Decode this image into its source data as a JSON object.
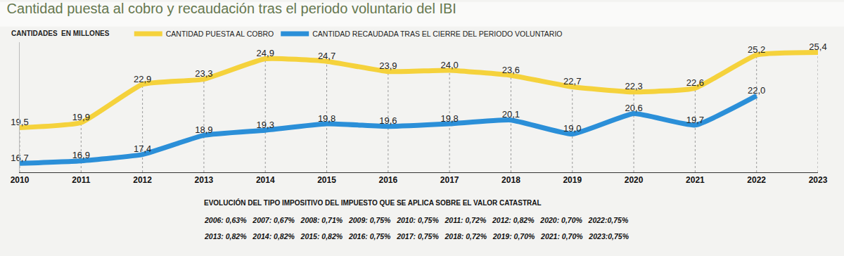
{
  "chart_data": {
    "type": "line",
    "title": "Cantidad puesta al cobro y recaudación tras el periodo voluntario del IBI",
    "annotations": [
      "CANTIDADES  EN MILLONES"
    ],
    "categories": [
      "2010",
      "2011",
      "2012",
      "2013",
      "2014",
      "2015",
      "2016",
      "2017",
      "2018",
      "2019",
      "2020",
      "2021",
      "2022",
      "2023"
    ],
    "series": [
      {
        "name": "CANTIDAD PUESTA AL COBRO",
        "color": "#f5d23c",
        "values": [
          19.5,
          19.9,
          22.9,
          23.3,
          24.9,
          24.7,
          23.9,
          24.0,
          23.6,
          22.7,
          22.3,
          22.6,
          25.2,
          25.4
        ],
        "value_labels": [
          "19,5",
          "19,9",
          "22,9",
          "23,3",
          "24,9",
          "24,7",
          "23,9",
          "24,0",
          "23,6",
          "22,7",
          "22,3",
          "22,6",
          "25,2",
          "25,4"
        ]
      },
      {
        "name": "CANTIDAD RECAUDADA TRAS EL CIERRE DEL PERIODO VOLUNTARIO",
        "color": "#2b8fd8",
        "values": [
          16.7,
          16.9,
          17.4,
          18.9,
          19.3,
          19.8,
          19.6,
          19.8,
          20.1,
          19.0,
          20.6,
          19.7,
          22.0,
          null
        ],
        "value_labels": [
          "16,7",
          "16,9",
          "17,4",
          "18,9",
          "19,3",
          "19,8",
          "19,6",
          "19,8",
          "20,1",
          "19,0",
          "20,6",
          "19,7",
          "22,0",
          null
        ]
      }
    ],
    "ylim": [
      16,
      26.2
    ],
    "yticks": [],
    "tick_labels": "x",
    "data_labels": true,
    "grid": false,
    "legend": "top",
    "tax_rates": {
      "title": "EVOLUCIÓN DEL TIPO IMPOSITIVO DEL IMPUESTO QUE SE APLICA SOBRE EL VALOR CATASTRAL",
      "rows": [
        [
          "2006: 0,63%",
          "2007: 0,67%",
          "2008: 0,71%",
          "2009: 0,75%",
          "2010: 0,75%",
          "2011: 0,72%",
          "2012: 0,82%",
          "2020: 0,70%",
          "2022:0,75%"
        ],
        [
          "2013: 0,82%",
          "2014: 0,82%",
          "2015: 0,82%",
          "2016: 0,75%",
          "2017: 0,75%",
          "2018: 0,72%",
          "2019: 0,70%",
          "2021: 0,70%",
          "2023:0,75%"
        ]
      ]
    }
  }
}
